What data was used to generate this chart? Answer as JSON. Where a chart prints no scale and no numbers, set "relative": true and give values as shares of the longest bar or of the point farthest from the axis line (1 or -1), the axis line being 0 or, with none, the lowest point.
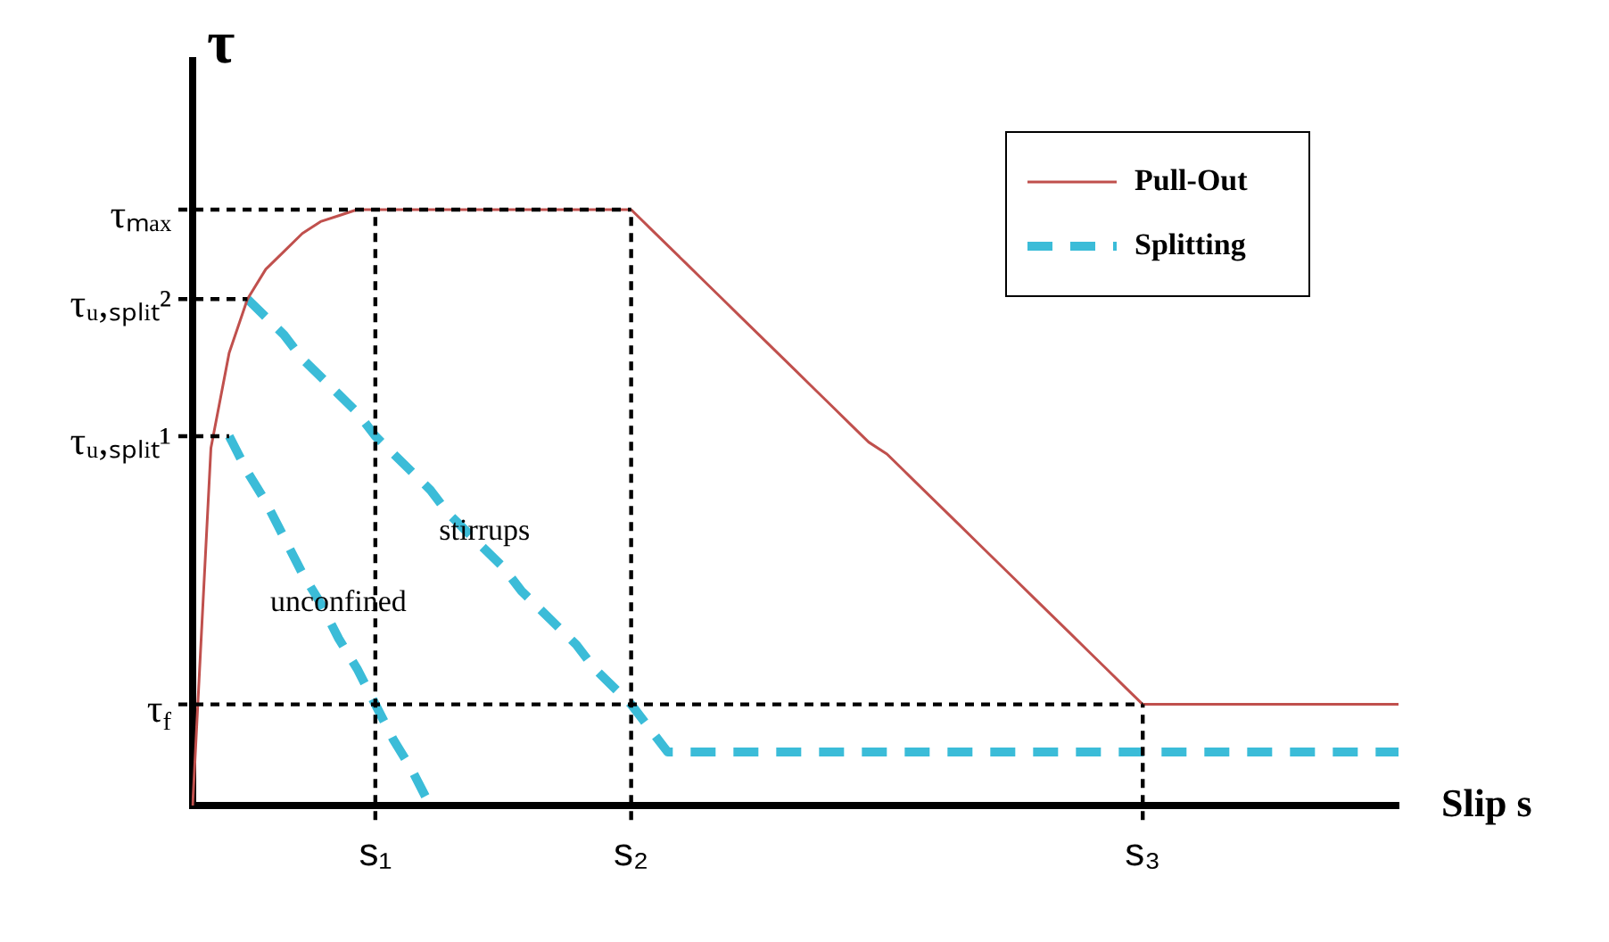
{
  "chart_data": {
    "type": "line",
    "relative": true,
    "xlabel": "Slip s",
    "ylabel": "τ",
    "categories": [
      null,
      null,
      null,
      null,
      null,
      null,
      null,
      null,
      null,
      null,
      "s₁",
      null,
      null,
      null,
      null,
      null,
      null,
      null,
      null,
      null,
      null,
      null,
      null,
      null,
      "s₂",
      null,
      null,
      null,
      null,
      null,
      null,
      null,
      null,
      null,
      null,
      null,
      null,
      null,
      null,
      null,
      null,
      null,
      null,
      null,
      null,
      null,
      null,
      null,
      null,
      null,
      null,
      null,
      "s₃",
      null,
      null,
      null,
      null,
      null,
      null,
      null,
      null,
      null,
      null,
      null,
      null,
      null,
      null
    ],
    "series": [
      {
        "name": "Pull-Out",
        "color": "#c0504d",
        "line_style": "solid",
        "values": [
          0,
          0.6,
          0.76,
          0.85,
          0.9,
          0.93,
          0.96,
          0.98,
          0.99,
          1,
          1,
          1,
          1,
          1,
          1,
          1,
          1,
          1,
          1,
          1,
          1,
          1,
          1,
          1,
          1,
          0.97,
          0.94,
          0.91,
          0.88,
          0.85,
          0.82,
          0.79,
          0.76,
          0.73,
          0.7,
          0.67,
          0.64,
          0.61,
          0.59,
          0.56,
          0.53,
          0.5,
          0.47,
          0.44,
          0.41,
          0.38,
          0.35,
          0.32,
          0.29,
          0.26,
          0.23,
          0.2,
          0.17,
          0.17,
          0.17,
          0.17,
          0.17,
          0.17,
          0.17,
          0.17,
          0.17,
          0.17,
          0.17,
          0.17,
          0.17,
          0.17,
          0.17
        ]
      },
      {
        "name": "Splitting",
        "color": "#3bbcd8",
        "line_style": "dashed",
        "values": [
          null,
          null,
          0.62,
          0.56,
          0.51,
          0.45,
          0.39,
          0.34,
          0.28,
          0.23,
          0.17,
          0.11,
          0.06,
          0,
          null,
          null,
          null,
          null,
          null,
          null,
          null,
          null,
          null,
          null,
          null,
          null,
          null,
          null,
          null,
          null,
          null,
          null,
          null,
          null,
          null,
          null,
          null,
          null,
          null,
          null,
          null,
          null,
          null,
          null,
          null,
          null,
          null,
          null,
          null,
          null,
          null,
          null,
          null,
          null,
          null,
          null,
          null,
          null,
          null,
          null,
          null,
          null,
          null,
          null,
          null,
          null,
          null
        ]
      },
      {
        "color": "#3bbcd8",
        "line_style": "dashed",
        "values": [
          null,
          null,
          null,
          0.85,
          0.82,
          0.79,
          0.75,
          0.72,
          0.69,
          0.66,
          0.62,
          0.59,
          0.56,
          0.53,
          0.49,
          0.46,
          0.43,
          0.4,
          0.36,
          0.33,
          0.3,
          0.27,
          0.23,
          0.2,
          0.17,
          0.13,
          0.09,
          0.09,
          0.09,
          0.09,
          0.09,
          0.09,
          0.09,
          0.09,
          0.09,
          0.09,
          0.09,
          0.09,
          0.09,
          0.09,
          0.09,
          0.09,
          0.09,
          0.09,
          0.09,
          0.09,
          0.09,
          0.09,
          0.09,
          0.09,
          0.09,
          0.09,
          0.09,
          0.09,
          0.09,
          0.09,
          0.09,
          0.09,
          0.09,
          0.09,
          0.09,
          0.09,
          0.09,
          0.09,
          0.09,
          0.09,
          0.09
        ]
      }
    ],
    "annotations": [
      "stirrups",
      "unconfined"
    ],
    "ref_lines": [
      {
        "axis": "y",
        "value": 1,
        "label": "τₘₐₓ",
        "color": "#000000",
        "line_style": "dashed"
      },
      {
        "axis": "y",
        "value": 0.85,
        "label": "τᵤ,ₛₚₗᵢₜ²",
        "color": "#000000",
        "line_style": "dashed"
      },
      {
        "axis": "y",
        "value": 0.62,
        "label": "τᵤ,ₛₚₗᵢₜ¹",
        "color": "#000000",
        "line_style": "dashed"
      },
      {
        "axis": "y",
        "value": 0.17,
        "label": "τ$_{f}$",
        "color": "#000000",
        "line_style": "dashed"
      },
      {
        "axis": "x",
        "value": "s₁",
        "color": "#000000",
        "line_style": "dashed"
      },
      {
        "axis": "x",
        "value": "s₂",
        "color": "#000000",
        "line_style": "dashed"
      },
      {
        "axis": "x",
        "value": "s₃",
        "color": "#000000",
        "line_style": "dashed"
      }
    ],
    "grid": false,
    "legend": "top right",
    "marker": "none"
  }
}
